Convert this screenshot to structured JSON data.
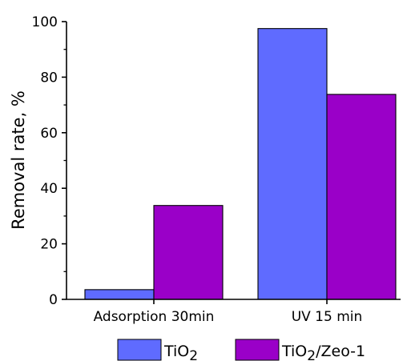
{
  "chart_data": {
    "type": "bar",
    "categories": [
      "Adsorption 30min",
      "UV 15 min"
    ],
    "series": [
      {
        "name": "TiO2",
        "name_parts": [
          "TiO",
          "2"
        ],
        "color": "#5f6bff",
        "values": [
          3.5,
          97.5
        ]
      },
      {
        "name": "TiO2/Zeo-1",
        "name_parts": [
          "TiO",
          "2",
          "/Zeo-1"
        ],
        "color": "#9a00c8",
        "values": [
          33.8,
          73.8
        ]
      }
    ],
    "ylabel": "Removal rate, %",
    "ylim": [
      0,
      100
    ],
    "yticks": [
      0,
      20,
      40,
      60,
      80,
      100
    ],
    "grid": false,
    "legend_position": "bottom"
  }
}
